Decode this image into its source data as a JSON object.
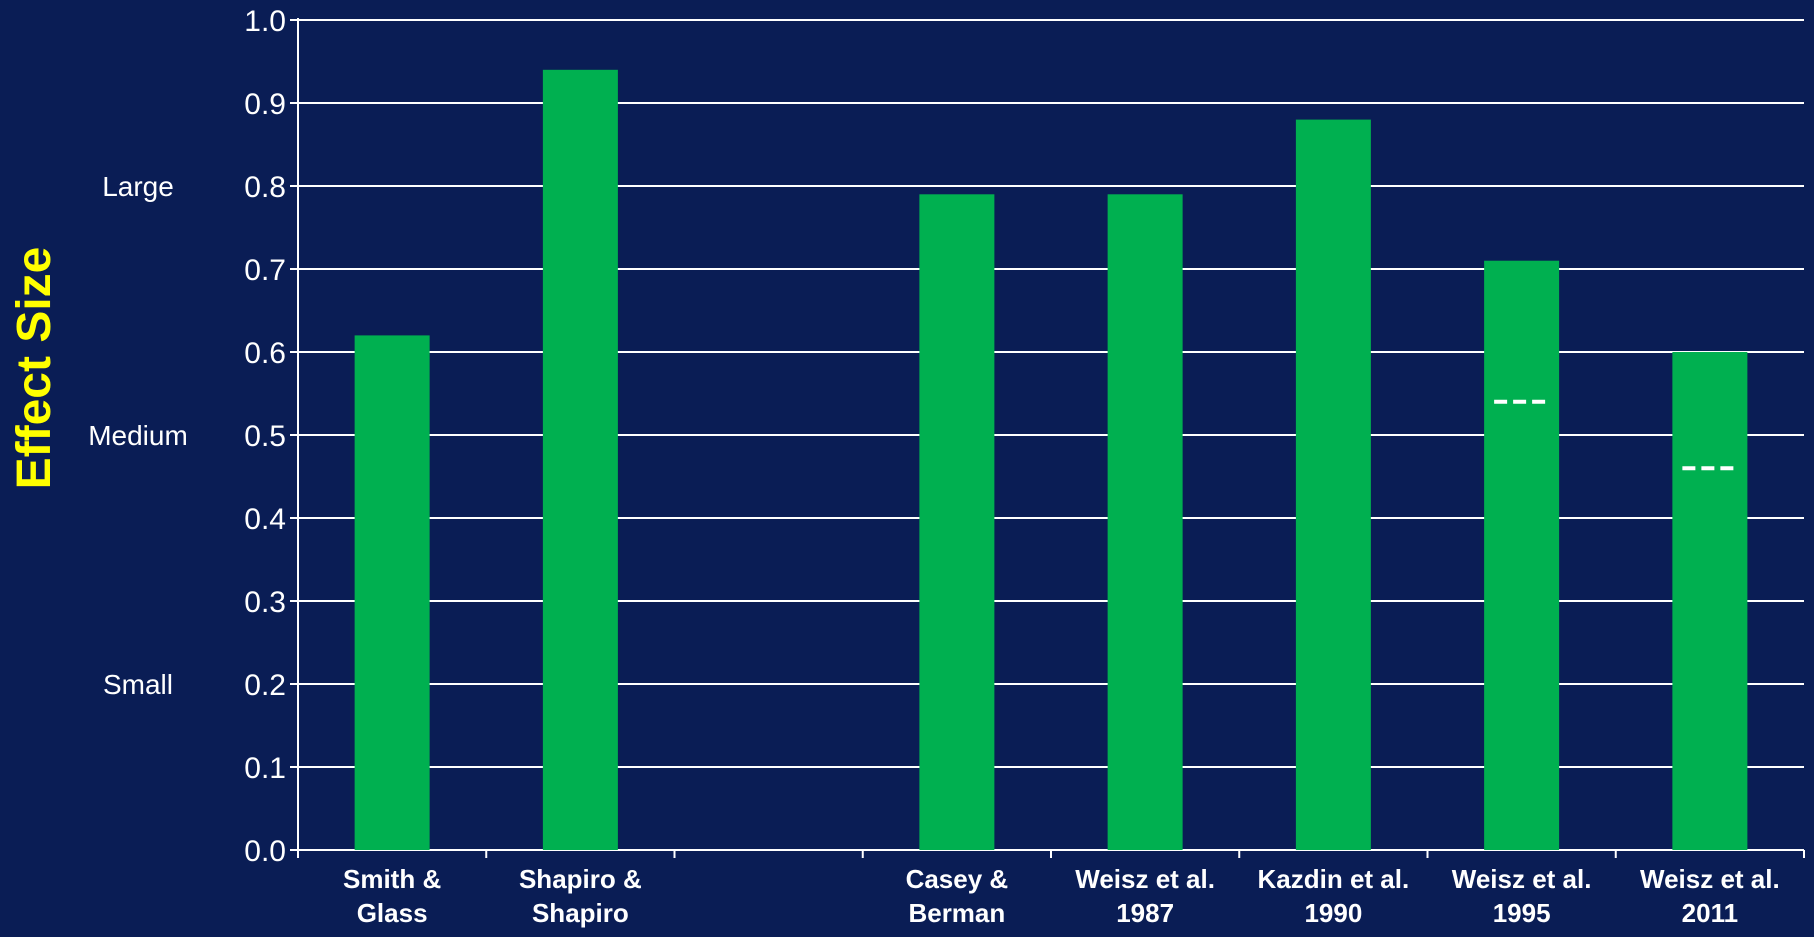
{
  "chart_data": {
    "type": "bar",
    "ylabel": "Effect Size",
    "ylim": [
      0,
      1.0
    ],
    "yticks": [
      "0.0",
      "0.1",
      "0.2",
      "0.3",
      "0.4",
      "0.5",
      "0.6",
      "0.7",
      "0.8",
      "0.9",
      "1.0"
    ],
    "grid": true,
    "categories": [
      [
        "Smith &",
        "Glass"
      ],
      [
        "Shapiro &",
        "Shapiro"
      ],
      [
        "",
        ""
      ],
      [
        "Casey &",
        "Berman"
      ],
      [
        "Weisz et al.",
        "1987"
      ],
      [
        "Kazdin et al.",
        "1990"
      ],
      [
        "Weisz et al.",
        "1995"
      ],
      [
        "Weisz et al.",
        "2011"
      ]
    ],
    "values": [
      0.62,
      0.94,
      null,
      0.79,
      0.79,
      0.88,
      0.71,
      0.6
    ],
    "reference_marks": [
      {
        "category_index": 6,
        "value": 0.54,
        "style": "dashed"
      },
      {
        "category_index": 7,
        "value": 0.46,
        "style": "dashed"
      }
    ],
    "effect_bands": [
      {
        "label": "Large",
        "value": 0.8
      },
      {
        "label": "Medium",
        "value": 0.5
      },
      {
        "label": "Small",
        "value": 0.2
      }
    ],
    "colors": {
      "background": "#0a1d55",
      "bar": "#00b050",
      "grid": "#ffffff",
      "ylabel": "#ffff00",
      "text": "#ffffff"
    }
  }
}
